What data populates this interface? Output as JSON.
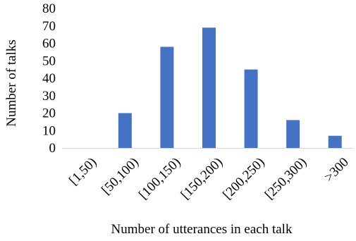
{
  "chart_data": {
    "type": "bar",
    "categories": [
      "[1,50)",
      "[50,100)",
      "[100,150)",
      "[150,200)",
      "[200,250)",
      "[250,300)",
      ">300"
    ],
    "values": [
      0,
      20,
      58,
      69,
      45,
      16,
      7
    ],
    "xlabel": "Number of utterances in each talk",
    "ylabel": "Number of talks",
    "ylim": [
      0,
      80
    ],
    "yticks": [
      0,
      10,
      20,
      30,
      40,
      50,
      60,
      70,
      80
    ],
    "grid": false,
    "legend": "none",
    "bar_color": "#4472C4"
  }
}
